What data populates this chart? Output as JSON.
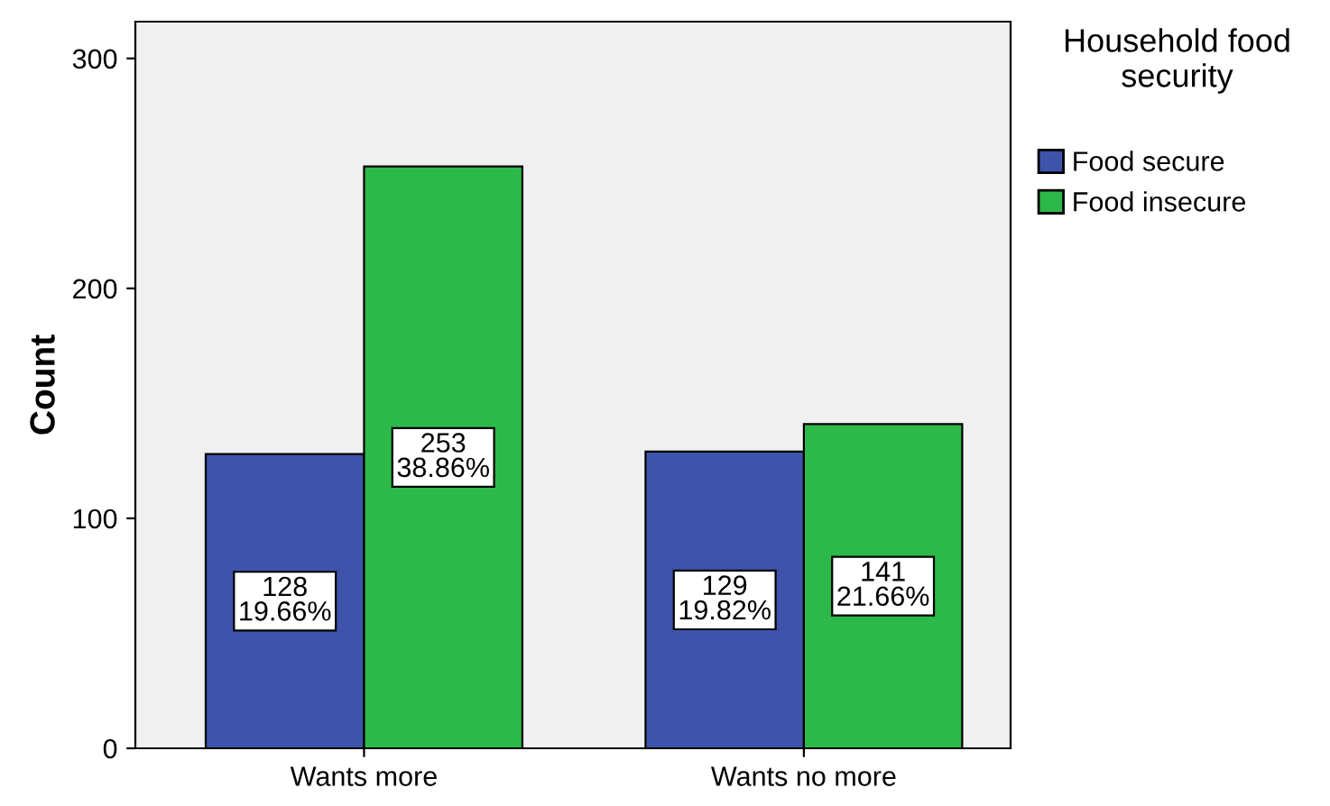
{
  "chart_data": {
    "type": "bar",
    "ylabel": "Count",
    "legend_title": "Household food security",
    "categories": [
      "Wants more",
      "Wants no more"
    ],
    "series": [
      {
        "name": "Food secure",
        "color": "#3e54ab",
        "values": [
          128,
          129
        ],
        "value_labels": [
          "128\n19.66%",
          "129\n19.82%"
        ]
      },
      {
        "name": "Food insecure",
        "color": "#2db84a",
        "values": [
          253,
          141
        ],
        "value_labels": [
          "253\n38.86%",
          "141\n21.66%"
        ]
      }
    ],
    "ylim": [
      0,
      316
    ],
    "yticks": [
      0,
      100,
      200,
      300
    ],
    "grid": false,
    "legend": "right"
  }
}
